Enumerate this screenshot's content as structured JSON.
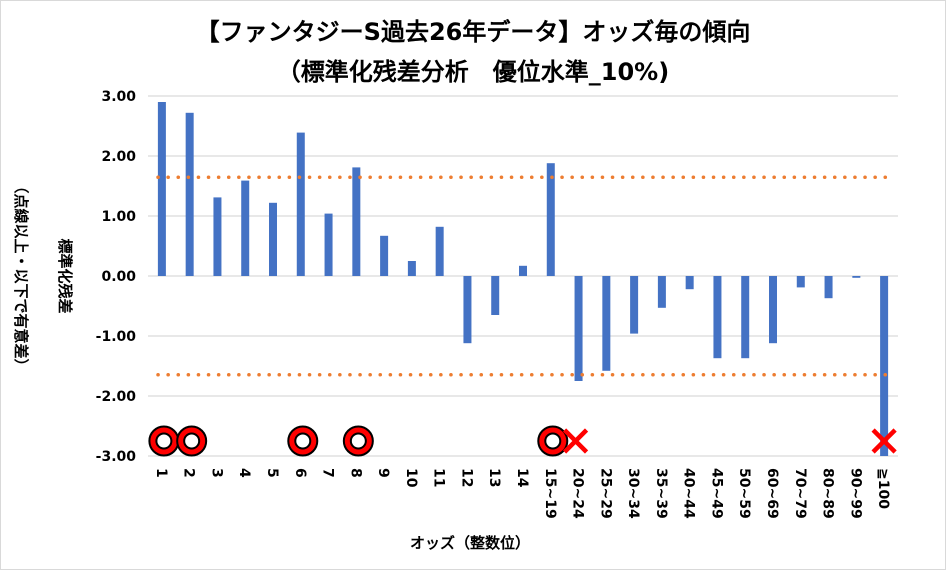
{
  "chart_data": {
    "type": "bar",
    "title": "【ファンタジーS過去26年データ】オッズ毎の傾向",
    "subtitle": "（標準化残差分析　優位水準_10%)",
    "xlabel": "オッズ（整数位）",
    "ylabel": "標準化残差",
    "ylabel_note": "（点線以上・以下で有意差）",
    "ylim": [
      -3,
      3
    ],
    "yticks": [
      "3.00",
      "2.00",
      "1.00",
      "0.00",
      "-1.00",
      "-2.00",
      "-3.00"
    ],
    "grid": true,
    "categories": [
      "1",
      "2",
      "3",
      "4",
      "5",
      "6",
      "7",
      "8",
      "9",
      "10",
      "11",
      "12",
      "13",
      "14",
      "15~19",
      "20~24",
      "25~29",
      "30~34",
      "35~39",
      "40~44",
      "45~49",
      "50~59",
      "60~69",
      "70~79",
      "80~89",
      "90~99",
      "≧100"
    ],
    "values": [
      2.9,
      2.72,
      1.31,
      1.59,
      1.22,
      2.39,
      1.04,
      1.81,
      0.67,
      0.25,
      0.82,
      -1.12,
      -0.65,
      0.17,
      1.88,
      -1.75,
      -1.58,
      -0.96,
      -0.53,
      -0.22,
      -1.37,
      -1.37,
      -1.12,
      -0.19,
      -0.37,
      -0.03,
      -3.0
    ],
    "threshold_lines": [
      1.645,
      -1.645
    ],
    "markers": {
      "circle": [
        "1",
        "2",
        "6",
        "8",
        "15~19"
      ],
      "cross": [
        "20~24",
        "≧100"
      ]
    },
    "colors": {
      "bar": "#4472C4",
      "threshold": "#ED7D31",
      "marker": "#FF0000",
      "grid": "#D9D9D9"
    }
  }
}
